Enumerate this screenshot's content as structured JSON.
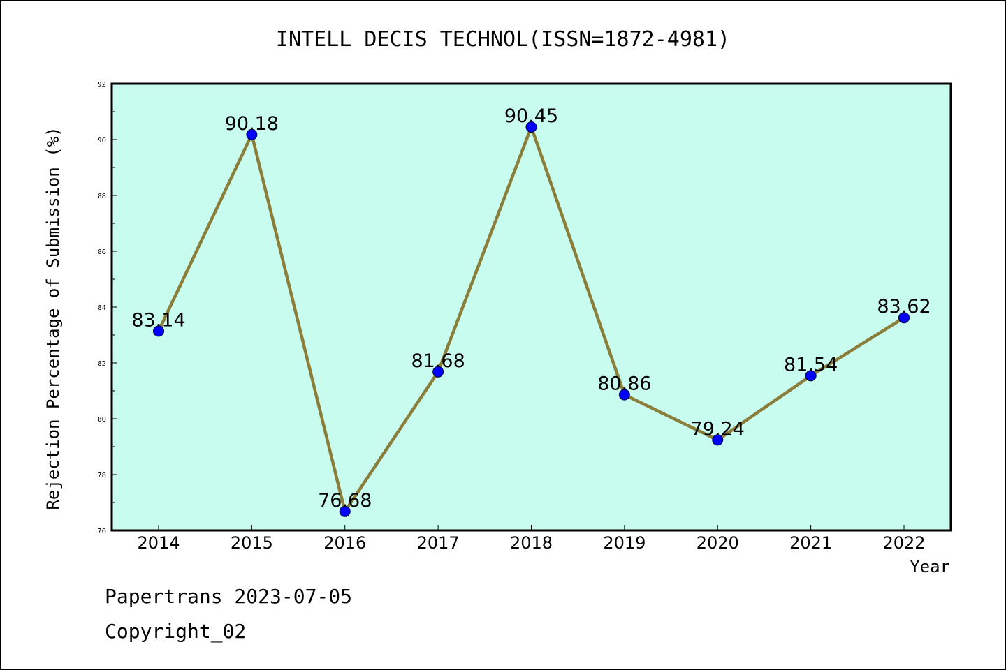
{
  "footer": {
    "line1": "Papertrans 2023-07-05",
    "line2": "Copyright_02"
  },
  "chart_data": {
    "type": "line",
    "title": "INTELL DECIS TECHNOL(ISSN=1872-4981)",
    "xlabel": "Year",
    "ylabel": "Rejection Percentage of Submission (%)",
    "categories": [
      "2014",
      "2015",
      "2016",
      "2017",
      "2018",
      "2019",
      "2020",
      "2021",
      "2022"
    ],
    "values": [
      83.14,
      90.18,
      76.68,
      81.68,
      90.45,
      80.86,
      79.24,
      81.54,
      83.62
    ],
    "data_labels": [
      "83.14",
      "90.18",
      "76.68",
      "81.68",
      "90.45",
      "80.86",
      "79.24",
      "81.54",
      "83.62"
    ],
    "ylim": [
      76,
      92
    ],
    "yticks": [
      76,
      78,
      80,
      82,
      84,
      86,
      88,
      90,
      92
    ],
    "grid": false,
    "colors": {
      "plot_background": "#c8fcee",
      "line": "#8b7d3a",
      "marker": "#0000ff"
    }
  }
}
